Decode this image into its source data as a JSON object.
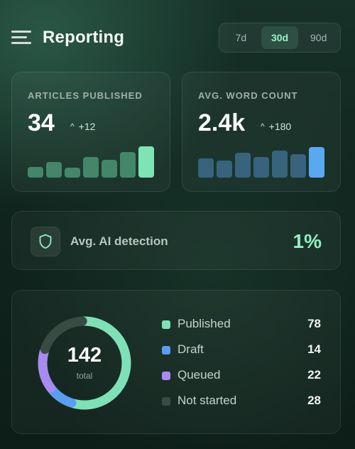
{
  "header": {
    "title": "Reporting",
    "menu_icon": "hamburger-menu-icon",
    "range_options": [
      "7d",
      "30d",
      "90d"
    ],
    "range_selected": "30d"
  },
  "stats": [
    {
      "label": "ARTICLES PUBLISHED",
      "value": "34",
      "delta": "+12",
      "delta_icon": "caret-up-icon",
      "bar_color": "#4e9a78",
      "bar_highlight_color": "#7ee3b5",
      "bars": [
        0.34,
        0.5,
        0.32,
        0.66,
        0.56,
        0.82,
        1.0
      ]
    },
    {
      "label": "AVG. WORD COUNT",
      "value": "2.4k",
      "delta": "+180",
      "delta_icon": "caret-up-icon",
      "bar_color": "#3f6f92",
      "bar_highlight_color": "#5aa9f0",
      "bars": [
        0.62,
        0.54,
        0.8,
        0.66,
        0.86,
        0.75,
        0.97
      ]
    }
  ],
  "ai_detection": {
    "icon": "shield-icon",
    "label": "Avg. AI detection",
    "value": "1%"
  },
  "status": {
    "total": "142",
    "total_label": "total",
    "items": [
      {
        "name": "Published",
        "count": 78,
        "color": "#7fe0b7"
      },
      {
        "name": "Draft",
        "count": 14,
        "color": "#5b9ef0"
      },
      {
        "name": "Queued",
        "count": 22,
        "color": "#a78bf0"
      },
      {
        "name": "Not started",
        "count": 28,
        "color": "#3a4b44"
      }
    ]
  },
  "colors": {
    "accent": "#8ff0c2",
    "background": "#10251e"
  }
}
